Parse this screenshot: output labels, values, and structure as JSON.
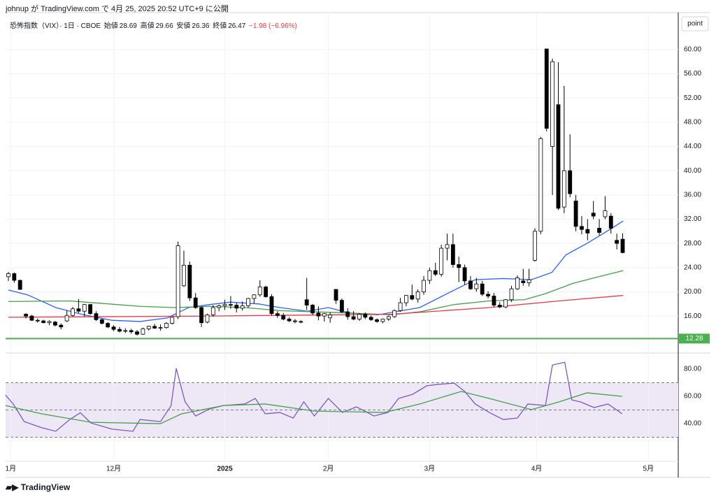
{
  "header": {
    "text": "johnup が TradingView.com で 4月 25, 2025 20:52 UTC+9 に公開",
    "footer": "TradingView",
    "scale": "point"
  },
  "legend": {
    "symbol": "恐怖指数（VIX）· 1日 · CBOE",
    "open_label": "始値",
    "open": 28.69,
    "high_label": "高値",
    "high": 29.66,
    "low_label": "安値",
    "low": 26.36,
    "close_label": "終値",
    "close": 26.47,
    "change": "−1.98 (−6.96%)"
  },
  "chart_data": [
    {
      "type": "candlestick",
      "up_color": "#ffffff",
      "down_color": "#000000",
      "grid": true,
      "xlim": [
        -1.43,
        114.5
      ],
      "ylim": [
        9.9,
        66.1
      ],
      "yticks": [
        {
          "value": 16,
          "label": "16.00"
        },
        {
          "value": 20,
          "label": "20.00"
        },
        {
          "value": 24,
          "label": "24.00"
        },
        {
          "value": 28,
          "label": "28.00"
        },
        {
          "value": 32,
          "label": "32.00"
        },
        {
          "value": 36,
          "label": "36.00"
        },
        {
          "value": 40,
          "label": "40.00"
        },
        {
          "value": 44,
          "label": "44.00"
        },
        {
          "value": 48,
          "label": "48.00"
        },
        {
          "value": 52,
          "label": "52.00"
        },
        {
          "value": 56,
          "label": "56.00"
        },
        {
          "value": 60,
          "label": "60.00"
        }
      ],
      "xticks": [
        {
          "value": 0.4,
          "label": "1月"
        },
        {
          "value": 18,
          "label": "12月"
        },
        {
          "value": 37,
          "label": "2025"
        },
        {
          "value": 54.7,
          "label": "2月"
        },
        {
          "value": 72,
          "label": "3月"
        },
        {
          "value": 90.3,
          "label": "4月"
        },
        {
          "value": 109.4,
          "label": "5月"
        }
      ],
      "hline": {
        "value": 12.28,
        "color": "#4caf50"
      },
      "ohlc": [
        [
          22.5,
          23.3,
          21.8,
          23.0
        ],
        [
          23.0,
          23.2,
          21.5,
          21.9
        ],
        [
          21.9,
          22.0,
          20.3,
          20.4
        ],
        [
          16.3,
          16.5,
          15.6,
          16.0
        ],
        [
          16.0,
          16.2,
          15.2,
          15.3
        ],
        [
          15.3,
          15.6,
          14.9,
          15.2
        ],
        [
          15.2,
          15.4,
          14.8,
          14.9
        ],
        [
          14.9,
          15.3,
          14.5,
          15.1
        ],
        [
          15.0,
          15.2,
          14.3,
          14.5
        ],
        [
          14.5,
          14.8,
          13.8,
          14.2
        ],
        [
          15.2,
          16.9,
          15.0,
          16.1
        ],
        [
          16.1,
          17.5,
          15.9,
          17.2
        ],
        [
          17.2,
          18.8,
          16.5,
          16.8
        ],
        [
          16.8,
          18.0,
          15.9,
          17.9
        ],
        [
          17.9,
          18.0,
          16.2,
          16.4
        ],
        [
          16.4,
          16.8,
          15.2,
          15.4
        ],
        [
          15.4,
          15.6,
          14.6,
          14.8
        ],
        [
          14.8,
          15.0,
          14.0,
          14.2
        ],
        [
          14.2,
          14.5,
          13.5,
          13.8
        ],
        [
          13.8,
          14.2,
          13.3,
          13.5
        ],
        [
          13.5,
          14.0,
          13.2,
          13.6
        ],
        [
          13.6,
          13.9,
          13.1,
          13.4
        ],
        [
          13.4,
          13.7,
          12.8,
          13.0
        ],
        [
          13.0,
          14.1,
          12.9,
          13.9
        ],
        [
          13.9,
          14.4,
          13.6,
          14.3
        ],
        [
          14.3,
          14.7,
          13.9,
          14.0
        ],
        [
          14.0,
          14.6,
          13.6,
          14.1
        ],
        [
          14.1,
          15.0,
          13.9,
          14.8
        ],
        [
          14.8,
          15.9,
          14.6,
          15.8
        ],
        [
          15.9,
          28.3,
          15.5,
          27.6
        ],
        [
          21.0,
          26.8,
          20.8,
          24.4
        ],
        [
          24.4,
          25.0,
          18.5,
          19.0
        ],
        [
          19.0,
          19.8,
          17.2,
          17.4
        ],
        [
          17.4,
          17.6,
          14.2,
          14.9
        ],
        [
          15.0,
          16.4,
          14.8,
          16.2
        ],
        [
          16.2,
          17.8,
          15.9,
          17.4
        ],
        [
          17.4,
          17.9,
          16.8,
          17.7
        ],
        [
          17.7,
          18.7,
          17.0,
          17.9
        ],
        [
          17.9,
          19.3,
          17.2,
          17.8
        ],
        [
          17.8,
          18.2,
          16.6,
          17.3
        ],
        [
          17.3,
          18.4,
          16.9,
          17.7
        ],
        [
          17.7,
          19.0,
          17.4,
          18.9
        ],
        [
          18.9,
          19.6,
          18.1,
          19.5
        ],
        [
          19.5,
          21.9,
          19.2,
          20.8
        ],
        [
          20.8,
          21.0,
          19.0,
          19.2
        ],
        [
          19.2,
          19.6,
          16.1,
          16.4
        ],
        [
          16.4,
          16.8,
          15.7,
          16.1
        ],
        [
          16.1,
          16.5,
          15.3,
          15.5
        ],
        [
          15.5,
          15.8,
          15.0,
          15.2
        ],
        [
          15.2,
          15.5,
          14.8,
          15.1
        ],
        [
          15.1,
          15.3,
          14.8,
          15.0
        ],
        [
          18.7,
          22.3,
          17.0,
          17.8
        ],
        [
          17.8,
          18.0,
          16.2,
          16.5
        ],
        [
          16.5,
          17.6,
          15.3,
          16.0
        ],
        [
          16.0,
          16.5,
          15.1,
          16.4
        ],
        [
          15.7,
          16.6,
          14.9,
          16.2
        ],
        [
          20.4,
          20.4,
          18.0,
          18.6
        ],
        [
          18.6,
          18.9,
          16.5,
          16.7
        ],
        [
          16.7,
          17.3,
          15.4,
          15.9
        ],
        [
          15.9,
          16.8,
          15.3,
          15.5
        ],
        [
          15.5,
          16.5,
          15.2,
          16.3
        ],
        [
          16.3,
          16.6,
          15.5,
          15.8
        ],
        [
          15.8,
          16.1,
          15.2,
          15.4
        ],
        [
          15.4,
          15.6,
          14.9,
          15.1
        ],
        [
          15.1,
          15.6,
          14.8,
          15.5
        ],
        [
          15.5,
          16.1,
          15.2,
          15.9
        ],
        [
          15.9,
          17.1,
          15.7,
          16.9
        ],
        [
          16.9,
          19.0,
          16.7,
          18.2
        ],
        [
          18.2,
          19.5,
          17.6,
          19.4
        ],
        [
          19.4,
          21.2,
          18.6,
          18.8
        ],
        [
          18.8,
          20.4,
          18.2,
          20.0
        ],
        [
          20.0,
          22.6,
          19.5,
          21.9
        ],
        [
          21.9,
          24.0,
          21.3,
          23.5
        ],
        [
          23.5,
          24.8,
          22.6,
          22.9
        ],
        [
          22.9,
          27.8,
          22.5,
          27.2
        ],
        [
          27.2,
          29.6,
          25.2,
          27.8
        ],
        [
          27.8,
          29.6,
          24.0,
          24.5
        ],
        [
          24.5,
          25.8,
          21.6,
          24.0
        ],
        [
          24.0,
          24.5,
          21.2,
          21.8
        ],
        [
          21.8,
          22.6,
          20.3,
          20.5
        ],
        [
          20.5,
          22.3,
          20.0,
          21.3
        ],
        [
          21.3,
          21.8,
          19.3,
          19.6
        ],
        [
          19.6,
          20.1,
          18.9,
          19.3
        ],
        [
          19.3,
          19.8,
          17.5,
          17.8
        ],
        [
          17.8,
          18.3,
          17.3,
          17.5
        ],
        [
          17.5,
          18.8,
          17.3,
          18.7
        ],
        [
          18.7,
          21.0,
          18.3,
          20.5
        ],
        [
          20.5,
          22.7,
          20.3,
          22.3
        ],
        [
          21.8,
          23.8,
          21.0,
          21.5
        ],
        [
          21.5,
          23.8,
          20.9,
          22.0
        ],
        [
          25.2,
          30.5,
          25.0,
          30.0
        ],
        [
          30.0,
          45.6,
          29.5,
          45.3
        ],
        [
          60.1,
          60.1,
          46.5,
          47.0
        ],
        [
          44.0,
          58.5,
          36.0,
          58.0
        ],
        [
          50.9,
          57.9,
          33.5,
          33.8
        ],
        [
          34.0,
          54.0,
          33.0,
          40.0
        ],
        [
          40.0,
          46.0,
          35.6,
          36.2
        ],
        [
          35.0,
          36.0,
          30.0,
          30.8
        ],
        [
          30.8,
          32.5,
          29.5,
          30.3
        ],
        [
          30.3,
          32.0,
          28.5,
          29.7
        ],
        [
          33.0,
          35.0,
          32.0,
          32.5
        ],
        [
          30.5,
          32.0,
          29.3,
          29.8
        ],
        [
          32.4,
          35.8,
          32.0,
          33.4
        ],
        [
          32.5,
          33.0,
          29.6,
          30.5
        ],
        [
          28.5,
          29.6,
          27.0,
          28.0
        ],
        [
          28.69,
          29.66,
          26.36,
          26.47
        ]
      ],
      "series": [
        {
          "color": "#2962ff",
          "x": [
            0,
            3.3,
            8.1,
            12.9,
            17.7,
            22.5,
            27.2,
            30.8,
            34.4,
            38,
            42.8,
            46.4,
            51.1,
            54.7,
            58.3,
            63.1,
            66.7,
            70.3,
            75,
            79.8,
            84.6,
            89.4,
            92.9,
            95.3,
            98.9,
            102.5,
            105.1
          ],
          "values": [
            20.3,
            19.5,
            17.4,
            16.2,
            15.3,
            15.1,
            15.7,
            17.4,
            17.9,
            18.3,
            18,
            17.4,
            16.8,
            17.4,
            16.5,
            16.2,
            16.8,
            17.4,
            19.7,
            22,
            22.2,
            22,
            23.2,
            26.1,
            28,
            30.1,
            31.7
          ]
        },
        {
          "color": "#43a047",
          "x": [
            0,
            10.5,
            22.5,
            28.4,
            34.4,
            40.4,
            46.4,
            52.3,
            58.3,
            65.5,
            70.3,
            76.2,
            82.2,
            88.2,
            91.8,
            96.5,
            101.3,
            105.1
          ],
          "values": [
            18.4,
            18.5,
            17.6,
            17.4,
            17.6,
            17.4,
            16.9,
            16.7,
            16.5,
            16.2,
            16.7,
            17.9,
            18.5,
            18.7,
            19.7,
            21.4,
            22.6,
            23.5
          ]
        },
        {
          "color": "#f23645",
          "x": [
            0,
            34.4,
            65.5,
            82.2,
            94.1,
            105.1
          ],
          "values": [
            15.8,
            16,
            16.3,
            17.4,
            18.5,
            19.4
          ]
        }
      ]
    },
    {
      "type": "line",
      "ylim": [
        14.9,
        91.8
      ],
      "band": [
        30,
        70
      ],
      "band_color": "#ede7f6",
      "levels": [
        70,
        50,
        30
      ],
      "yticks": [
        {
          "value": 40,
          "label": "40.00"
        },
        {
          "value": 60,
          "label": "60.00"
        },
        {
          "value": 80,
          "label": "80.00"
        }
      ],
      "series": [
        {
          "color": "#7e57c2",
          "x": [
            -0.5,
            0.9,
            2.7,
            5.7,
            8.1,
            10.5,
            12.3,
            14.1,
            17.7,
            21.3,
            22.5,
            26,
            27.8,
            28.7,
            30.2,
            32,
            34.4,
            36.8,
            40.4,
            42.2,
            43.9,
            46.4,
            48.7,
            50.5,
            52.3,
            54.7,
            57.1,
            59.5,
            62.5,
            64.9,
            66.7,
            69.1,
            71.5,
            73.2,
            76.2,
            78,
            79.8,
            82.2,
            84.6,
            87,
            88.8,
            91.8,
            93,
            95.1,
            96.3,
            97.8,
            100.1,
            102.5,
            104.9
          ],
          "values": [
            61,
            54,
            41.5,
            37,
            34.4,
            43,
            48,
            40.5,
            36,
            34.4,
            43,
            41.5,
            53,
            80.5,
            56,
            45.6,
            50.8,
            53.3,
            54.4,
            58.5,
            47.2,
            48.2,
            44.1,
            56,
            45.6,
            58.5,
            48.2,
            52.3,
            45.6,
            48.2,
            58.5,
            61.5,
            67.7,
            68.7,
            69.7,
            63.6,
            54.4,
            48.2,
            43,
            44.1,
            54.4,
            53.3,
            83,
            85,
            57.4,
            55.9,
            51.8,
            54.4,
            47.2
          ]
        },
        {
          "color": "#43a047",
          "x": [
            -0.5,
            5.7,
            14.1,
            26,
            29.6,
            36.8,
            43.9,
            52.3,
            64.3,
            70.3,
            77.4,
            82.2,
            89.4,
            94.1,
            98.9,
            104.9
          ],
          "values": [
            53.3,
            47.2,
            41,
            40,
            47.2,
            53.3,
            54.4,
            49.2,
            48.2,
            54.4,
            63.6,
            58.5,
            50.3,
            55.9,
            62.6,
            60
          ]
        }
      ]
    }
  ]
}
